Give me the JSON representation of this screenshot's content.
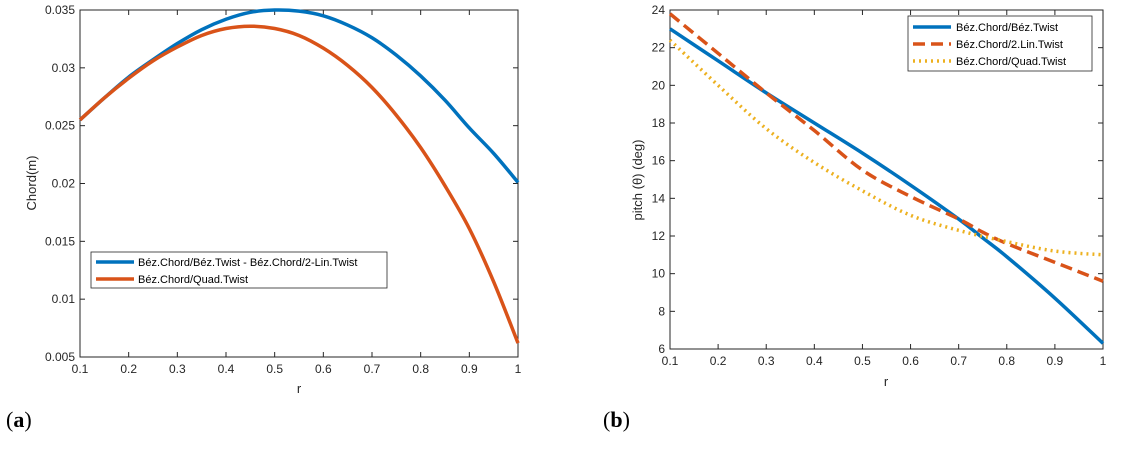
{
  "chart_data": [
    {
      "type": "line",
      "panel_label": "a",
      "xlabel": "r",
      "ylabel": "Chord(m)",
      "xlim": [
        0.1,
        1.0
      ],
      "ylim": [
        0.005,
        0.035
      ],
      "x_ticks": [
        "0.1",
        "0.2",
        "0.3",
        "0.4",
        "0.5",
        "0.6",
        "0.7",
        "0.8",
        "0.9",
        "1"
      ],
      "y_ticks": [
        "0.005",
        "0.01",
        "0.015",
        "0.02",
        "0.025",
        "0.03",
        "0.035"
      ],
      "legend_position": "lower-left",
      "series": [
        {
          "name": "Béz.Chord/Béz.Twist - Béz.Chord/2-Lin.Twist",
          "color": "#0072BD",
          "style": "solid",
          "x": [
            0.1,
            0.15,
            0.2,
            0.25,
            0.3,
            0.35,
            0.4,
            0.45,
            0.5,
            0.55,
            0.6,
            0.65,
            0.7,
            0.75,
            0.8,
            0.85,
            0.9,
            0.95,
            1.0
          ],
          "y": [
            0.0255,
            0.0274,
            0.0292,
            0.0307,
            0.0321,
            0.0333,
            0.0342,
            0.0348,
            0.035,
            0.0349,
            0.0345,
            0.0337,
            0.0326,
            0.0311,
            0.0293,
            0.0272,
            0.0248,
            0.0226,
            0.0201
          ]
        },
        {
          "name": "Béz.Chord/Quad.Twist",
          "color": "#D95319",
          "style": "solid",
          "x": [
            0.1,
            0.15,
            0.2,
            0.25,
            0.3,
            0.35,
            0.4,
            0.45,
            0.5,
            0.55,
            0.6,
            0.65,
            0.7,
            0.75,
            0.8,
            0.85,
            0.9,
            0.95,
            1.0
          ],
          "y": [
            0.0255,
            0.0274,
            0.0291,
            0.0306,
            0.0318,
            0.0328,
            0.0334,
            0.0336,
            0.0334,
            0.0328,
            0.0317,
            0.0302,
            0.0283,
            0.0259,
            0.0231,
            0.0198,
            0.0161,
            0.0115,
            0.0062
          ]
        }
      ]
    },
    {
      "type": "line",
      "panel_label": "b",
      "xlabel": "r",
      "ylabel": "pitch (θ) (deg)",
      "xlim": [
        0.1,
        1.0
      ],
      "ylim": [
        6,
        24
      ],
      "x_ticks": [
        "0.1",
        "0.2",
        "0.3",
        "0.4",
        "0.5",
        "0.6",
        "0.7",
        "0.8",
        "0.9",
        "1"
      ],
      "y_ticks": [
        "6",
        "8",
        "10",
        "12",
        "14",
        "16",
        "18",
        "20",
        "22",
        "24"
      ],
      "legend_position": "top-right",
      "series": [
        {
          "name": "Béz.Chord/Béz.Twist",
          "color": "#0072BD",
          "style": "solid",
          "x": [
            0.1,
            0.2,
            0.3,
            0.4,
            0.5,
            0.6,
            0.7,
            0.75,
            0.8,
            0.9,
            1.0
          ],
          "y": [
            23.0,
            21.3,
            19.6,
            18.0,
            16.4,
            14.7,
            12.9,
            11.9,
            10.9,
            8.7,
            6.3
          ]
        },
        {
          "name": "Béz.Chord/2.Lin.Twist",
          "color": "#D95319",
          "style": "dashed",
          "x": [
            0.1,
            0.2,
            0.3,
            0.4,
            0.5,
            0.6,
            0.7,
            0.75,
            0.8,
            0.9,
            1.0
          ],
          "y": [
            23.8,
            21.7,
            19.6,
            17.6,
            15.5,
            14.1,
            12.9,
            12.2,
            11.6,
            10.6,
            9.6
          ]
        },
        {
          "name": "Béz.Chord/Quad.Twist",
          "color": "#EDB120",
          "style": "dotted",
          "x": [
            0.1,
            0.2,
            0.3,
            0.4,
            0.5,
            0.6,
            0.7,
            0.8,
            0.9,
            1.0
          ],
          "y": [
            22.4,
            20.0,
            17.7,
            15.9,
            14.4,
            13.1,
            12.3,
            11.7,
            11.2,
            11.0
          ]
        }
      ]
    }
  ]
}
